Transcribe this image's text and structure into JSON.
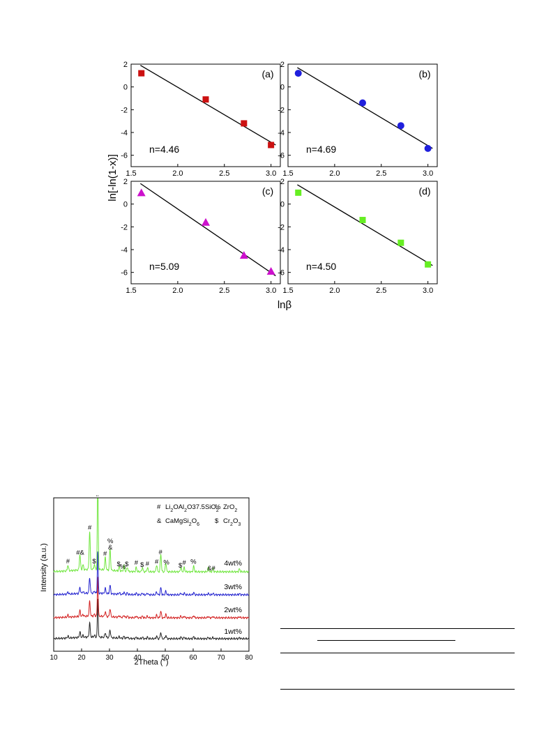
{
  "chart_data": [
    {
      "type": "scatter",
      "ylabel": "ln[-ln(1-x)]",
      "xlabel": "lnβ",
      "xlim": [
        1.5,
        3.1
      ],
      "ylim": [
        -7,
        2
      ],
      "xticks": [
        "1.5",
        "2.0",
        "2.5",
        "3.0"
      ],
      "yticks": [
        "2",
        "0",
        "-2",
        "-4",
        "-6"
      ],
      "panels": [
        {
          "label": "(a)",
          "annotation": "n=4.46",
          "marker": "square",
          "color": "#cc1111",
          "x": [
            1.61,
            2.3,
            2.71,
            3.0
          ],
          "y": [
            1.2,
            -1.1,
            -3.2,
            -5.1
          ],
          "fit": {
            "x": [
              1.6,
              3.05
            ],
            "y": [
              1.9,
              -5.1
            ]
          }
        },
        {
          "label": "(b)",
          "annotation": "n=4.69",
          "marker": "circle",
          "color": "#1f1fdd",
          "x": [
            1.61,
            2.3,
            2.71,
            3.0
          ],
          "y": [
            1.2,
            -1.4,
            -3.4,
            -5.4
          ],
          "fit": {
            "x": [
              1.6,
              3.05
            ],
            "y": [
              1.7,
              -5.4
            ]
          }
        },
        {
          "label": "(c)",
          "annotation": "n=5.09",
          "marker": "triangle",
          "color": "#cc11cc",
          "x": [
            1.61,
            2.3,
            2.71,
            3.0
          ],
          "y": [
            1.0,
            -1.6,
            -4.5,
            -5.9
          ],
          "fit": {
            "x": [
              1.6,
              3.05
            ],
            "y": [
              1.8,
              -6.3
            ]
          }
        },
        {
          "label": "(d)",
          "annotation": "n=4.50",
          "marker": "square",
          "color": "#66ee22",
          "x": [
            1.61,
            2.3,
            2.71,
            3.0
          ],
          "y": [
            1.0,
            -1.4,
            -3.4,
            -5.3
          ],
          "fit": {
            "x": [
              1.6,
              3.05
            ],
            "y": [
              1.7,
              -5.4
            ]
          }
        }
      ]
    },
    {
      "type": "line",
      "xlabel": "2Theta (°)",
      "ylabel": "Intensity (a.u.)",
      "xlim": [
        10,
        80
      ],
      "xticks": [
        "10",
        "20",
        "30",
        "40",
        "50",
        "60",
        "70",
        "80"
      ],
      "legend": [
        {
          "symbol": "#",
          "phase": "Li2OAl2O37.5SiO2"
        },
        {
          "symbol": "%",
          "phase": "ZrO2"
        },
        {
          "symbol": "&",
          "phase": "CaMgSi2O6"
        },
        {
          "symbol": "$",
          "phase": "Cr2O3"
        }
      ],
      "series": [
        {
          "name": "1wt%",
          "color": "#222222"
        },
        {
          "name": "2wt%",
          "color": "#d21e1e"
        },
        {
          "name": "3wt%",
          "color": "#2323cf"
        },
        {
          "name": "4wt%",
          "color": "#6ee63c"
        }
      ],
      "peaks": [
        {
          "x": 15.1,
          "h": 8
        },
        {
          "x": 19.4,
          "h": 22
        },
        {
          "x": 20.5,
          "h": 7
        },
        {
          "x": 22.9,
          "h": 55
        },
        {
          "x": 24.6,
          "h": 7
        },
        {
          "x": 25.8,
          "h": 150
        },
        {
          "x": 28.5,
          "h": 18
        },
        {
          "x": 30.2,
          "h": 30
        },
        {
          "x": 33.5,
          "h": 6
        },
        {
          "x": 35.2,
          "h": 8
        },
        {
          "x": 36.4,
          "h": 6
        },
        {
          "x": 39.6,
          "h": 6
        },
        {
          "x": 41.8,
          "h": 6
        },
        {
          "x": 43.6,
          "h": 6
        },
        {
          "x": 46.9,
          "h": 10
        },
        {
          "x": 48.4,
          "h": 25
        },
        {
          "x": 50.2,
          "h": 13
        },
        {
          "x": 55.6,
          "h": 6
        },
        {
          "x": 56.8,
          "h": 6
        },
        {
          "x": 60.2,
          "h": 8
        },
        {
          "x": 65.4,
          "h": 5
        },
        {
          "x": 67.1,
          "h": 5
        },
        {
          "x": 76.6,
          "h": 4
        }
      ],
      "peak_labels": [
        {
          "x": 15.1,
          "text": "#"
        },
        {
          "x": 19.5,
          "text": "#&"
        },
        {
          "x": 22.9,
          "text": "#"
        },
        {
          "x": 24.5,
          "text": "$"
        },
        {
          "x": 25.8,
          "text": "#"
        },
        {
          "x": 28.4,
          "text": "#"
        },
        {
          "x": 30.3,
          "text": "&"
        },
        {
          "x": 30.3,
          "text": "%"
        },
        {
          "x": 33.3,
          "text": "$"
        },
        {
          "x": 34.8,
          "text": "%"
        },
        {
          "x": 36.2,
          "text": "$"
        },
        {
          "x": 39.6,
          "text": "#"
        },
        {
          "x": 41.7,
          "text": "$"
        },
        {
          "x": 43.6,
          "text": "#"
        },
        {
          "x": 46.9,
          "text": "#"
        },
        {
          "x": 48.3,
          "text": "#"
        },
        {
          "x": 50.4,
          "text": "%"
        },
        {
          "x": 55.4,
          "text": "$"
        },
        {
          "x": 56.8,
          "text": "#"
        },
        {
          "x": 60.1,
          "text": "%"
        },
        {
          "x": 66.5,
          "text": "&#"
        }
      ]
    }
  ]
}
